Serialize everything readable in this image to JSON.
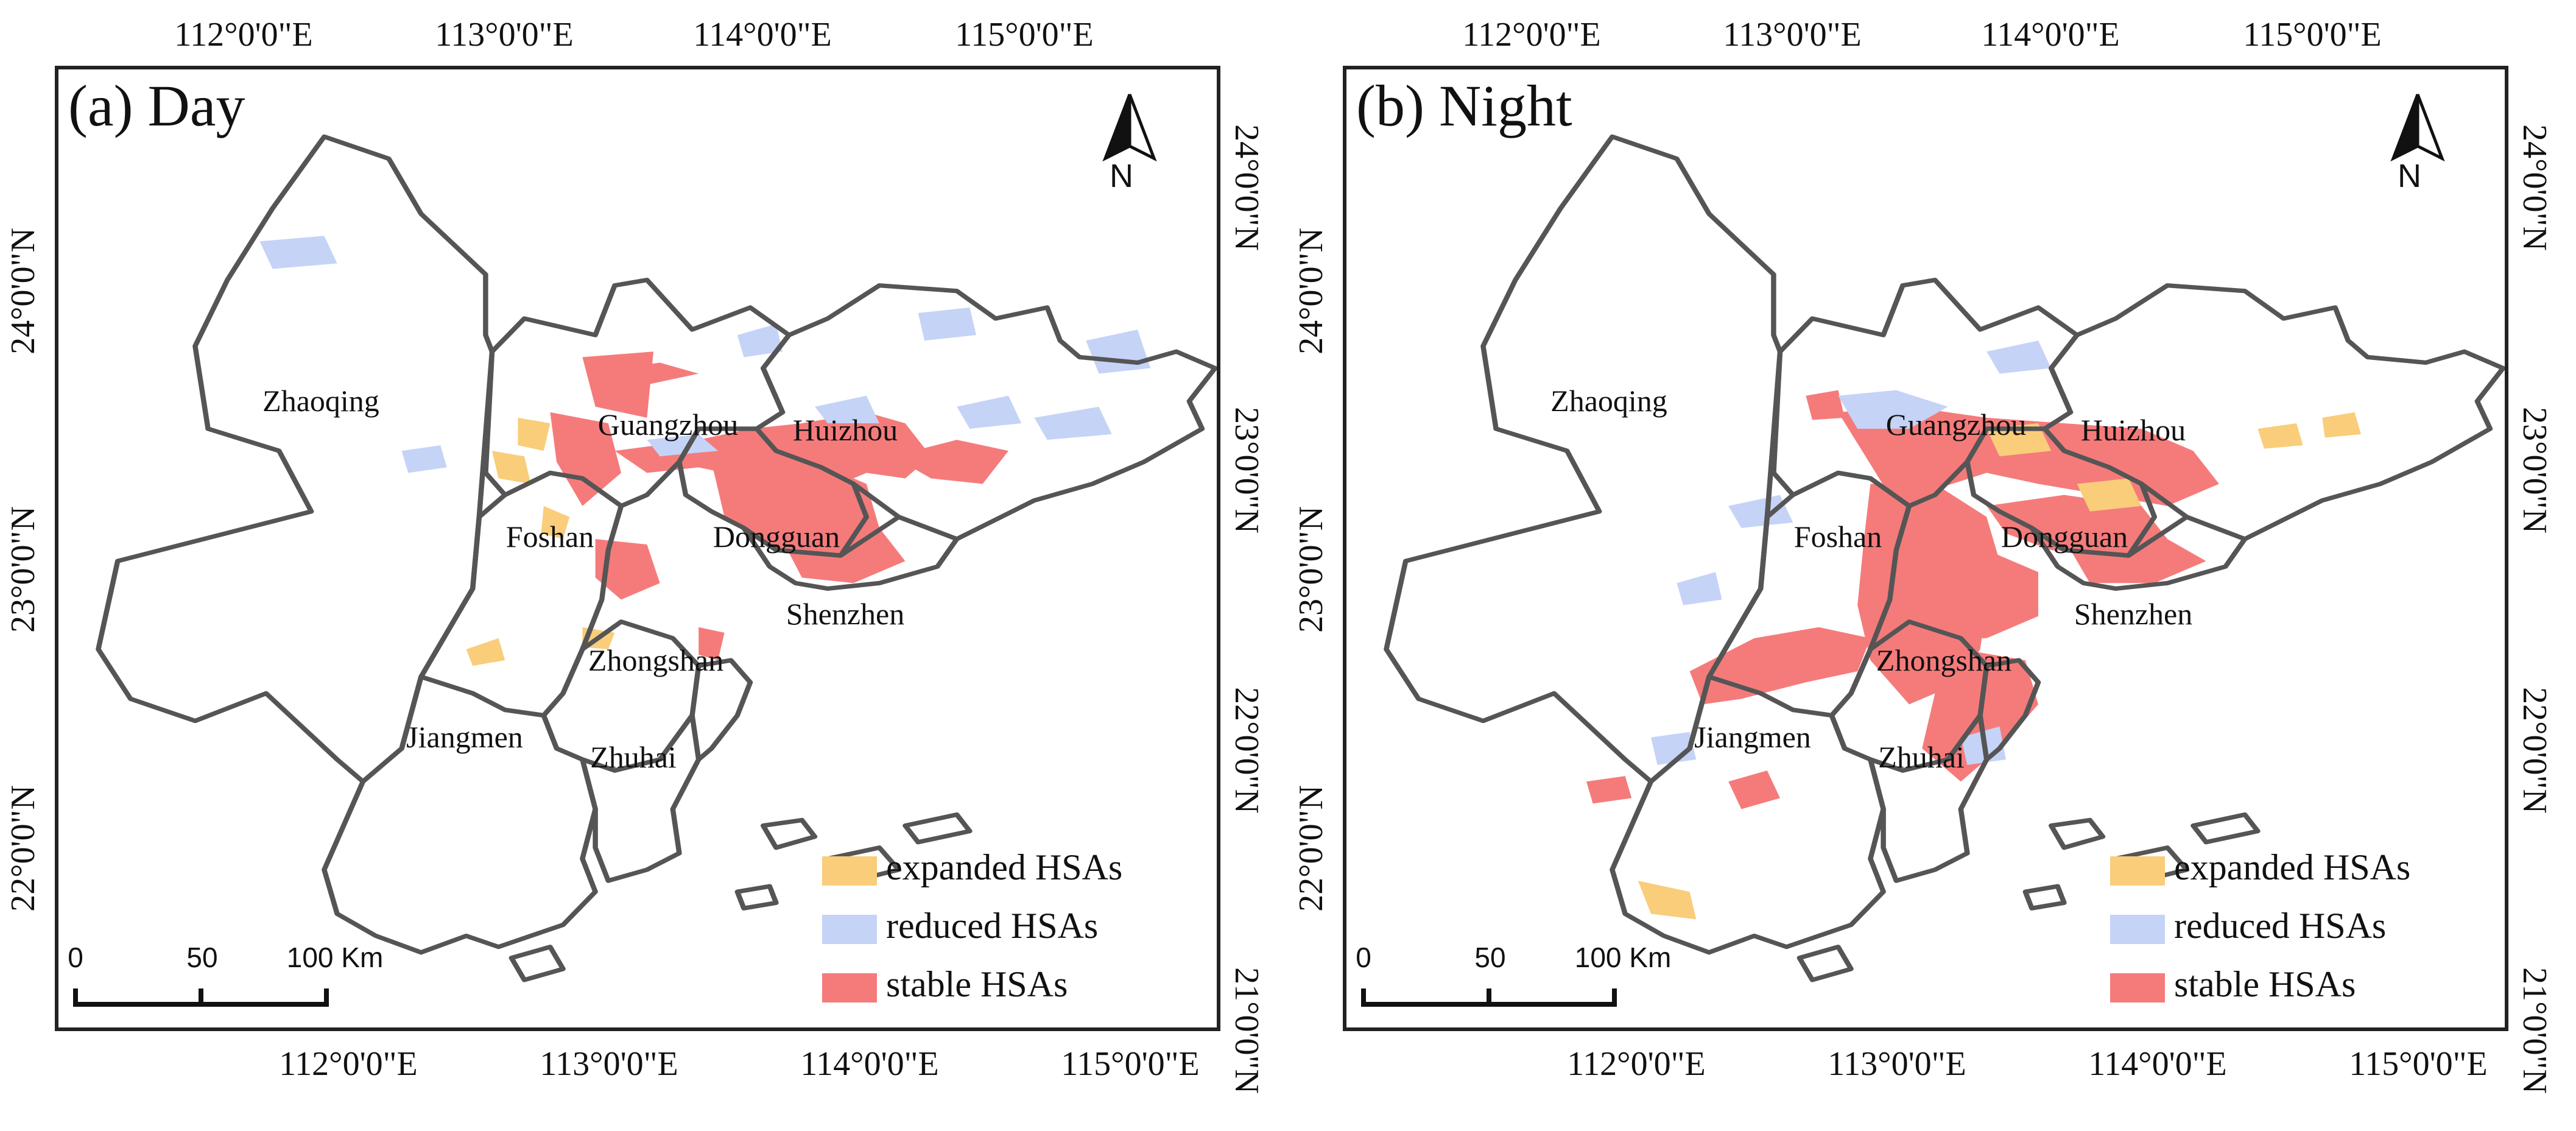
{
  "colors": {
    "expanded": "#f9cd7a",
    "reduced": "#c5d3f7",
    "stable": "#f57b7b",
    "boundary": "#555555",
    "frame": "#222222"
  },
  "axes": {
    "top_ticks": [
      "112°0'0\"E",
      "113°0'0\"E",
      "114°0'0\"E",
      "115°0'0\"E"
    ],
    "bottom_ticks": [
      "112°0'0\"E",
      "113°0'0\"E",
      "114°0'0\"E",
      "115°0'0\"E"
    ],
    "left_ticks": [
      "24°0'0\"N",
      "23°0'0\"N",
      "22°0'0\"N"
    ],
    "right_ticks": [
      "24°0'0\"N",
      "23°0'0\"N",
      "22°0'0\"N",
      "21°0'0\"N"
    ]
  },
  "cities": [
    "Zhaoqing",
    "Guangzhou",
    "Huizhou",
    "Foshan",
    "Dongguan",
    "Shenzhen",
    "Zhongshan",
    "Jiangmen",
    "Zhuhai"
  ],
  "legend": [
    {
      "key": "expanded",
      "label": "expanded HSAs"
    },
    {
      "key": "reduced",
      "label": "reduced HSAs"
    },
    {
      "key": "stable",
      "label": "stable HSAs"
    }
  ],
  "scale_bar": {
    "labels": [
      "0",
      "50",
      "100 Km"
    ]
  },
  "north_arrow": {
    "label": "N"
  },
  "panels": [
    {
      "id": "a",
      "title": "(a) Day"
    },
    {
      "id": "b",
      "title": "(b) Night"
    }
  ]
}
